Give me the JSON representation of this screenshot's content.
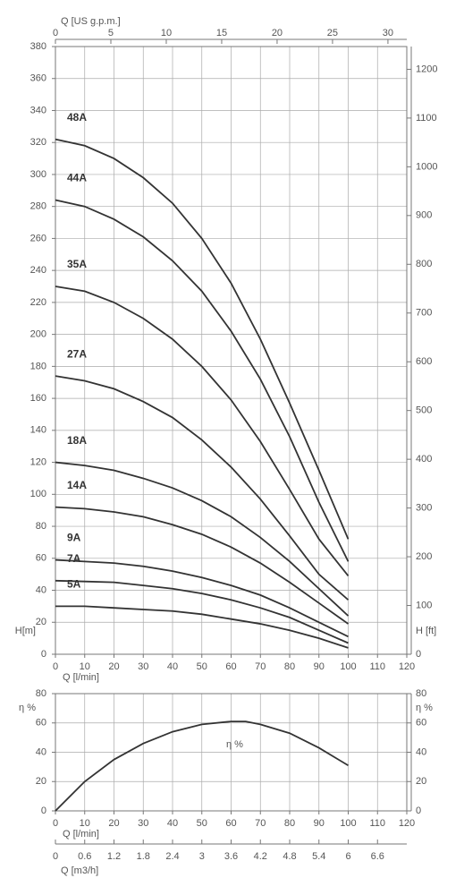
{
  "chart_data": [
    {
      "type": "line",
      "x_label": "Q [l/min]",
      "y_label": "H[m]",
      "y2_label": "H [ft]",
      "x2_label": "Q [US g.p.m.]",
      "x": [
        0,
        10,
        20,
        30,
        40,
        50,
        60,
        70,
        80,
        90,
        100
      ],
      "xlim": [
        0,
        120
      ],
      "xticks": [
        0,
        10,
        20,
        30,
        40,
        50,
        60,
        70,
        80,
        90,
        100,
        110,
        120
      ],
      "ylim": [
        0,
        380
      ],
      "yticks": [
        0,
        20,
        40,
        60,
        80,
        100,
        120,
        140,
        160,
        180,
        200,
        220,
        240,
        260,
        280,
        300,
        320,
        340,
        360,
        380
      ],
      "y2lim": [
        0,
        1246.7
      ],
      "y2ticks": [
        0,
        100,
        200,
        300,
        400,
        500,
        600,
        700,
        800,
        900,
        1000,
        1100,
        1200
      ],
      "x2lim": [
        0,
        31.7
      ],
      "x2ticks": [
        0,
        5,
        10,
        15,
        20,
        25,
        30
      ],
      "grid": true,
      "series": [
        {
          "name": "48A",
          "color": "#333333",
          "values": [
            322,
            318,
            310,
            298,
            282,
            260,
            232,
            197,
            157,
            115,
            72
          ]
        },
        {
          "name": "44A",
          "color": "#333333",
          "values": [
            284,
            280,
            272,
            261,
            246,
            227,
            202,
            172,
            136,
            95,
            58
          ]
        },
        {
          "name": "35A",
          "color": "#333333",
          "values": [
            230,
            227,
            220,
            210,
            197,
            180,
            159,
            133,
            103,
            72,
            49
          ]
        },
        {
          "name": "27A",
          "color": "#333333",
          "values": [
            174,
            171,
            166,
            158,
            148,
            134,
            117,
            97,
            74,
            50,
            34
          ]
        },
        {
          "name": "18A",
          "color": "#333333",
          "values": [
            120,
            118,
            115,
            110,
            104,
            96,
            86,
            73,
            58,
            41,
            24
          ]
        },
        {
          "name": "14A",
          "color": "#333333",
          "values": [
            92,
            91,
            89,
            86,
            81,
            75,
            67,
            57,
            45,
            32,
            19
          ]
        },
        {
          "name": "9A",
          "color": "#333333",
          "values": [
            59,
            58,
            57,
            55,
            52,
            48,
            43,
            37,
            29,
            20,
            11
          ]
        },
        {
          "name": "7A",
          "color": "#333333",
          "values": [
            46,
            45.5,
            45,
            43,
            41,
            38,
            34,
            29,
            23,
            15,
            7
          ]
        },
        {
          "name": "5A",
          "color": "#333333",
          "values": [
            30,
            30,
            29,
            28,
            27,
            25,
            22,
            19,
            15,
            10,
            4
          ]
        }
      ]
    },
    {
      "type": "line",
      "x_label": "Q [l/min]",
      "y_label": "η %",
      "y2_label": "η %",
      "x2_label": "Q [m3/h]",
      "x": [
        0,
        10,
        20,
        30,
        40,
        50,
        60,
        65,
        70,
        80,
        90,
        100
      ],
      "xlim": [
        0,
        120
      ],
      "xticks": [
        0,
        10,
        20,
        30,
        40,
        50,
        60,
        70,
        80,
        90,
        100,
        110,
        120
      ],
      "ylim": [
        0,
        80
      ],
      "yticks": [
        0,
        20,
        40,
        60,
        80
      ],
      "y2lim": [
        0,
        80
      ],
      "y2ticks": [
        0,
        20,
        40,
        60,
        80
      ],
      "x2lim": [
        0,
        7.2
      ],
      "x2ticks": [
        0,
        0.6,
        1.2,
        1.8,
        2.4,
        3,
        3.6,
        4.2,
        4.8,
        5.4,
        6,
        6.6
      ],
      "grid": true,
      "series": [
        {
          "name": "η %",
          "color": "#333333",
          "values": [
            0,
            20,
            35,
            46,
            54,
            59,
            61,
            61,
            59,
            53,
            43,
            31
          ]
        }
      ]
    }
  ]
}
